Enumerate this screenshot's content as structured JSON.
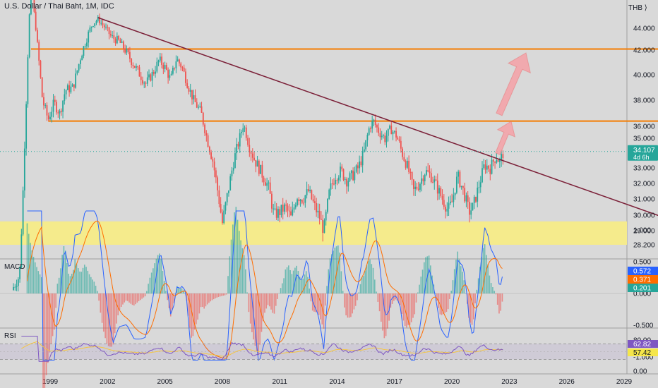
{
  "header": {
    "symbol": "U.S. Dollar / Thai Baht, 1M, IDC",
    "currency": "THB",
    "currency_suffix": "⟩"
  },
  "colors": {
    "background": "#d9d9d9",
    "up": "#26a69a",
    "down": "#ef5350",
    "trendline": "#7b2038",
    "hline": "#f57c00",
    "zone": "#f5eb8c",
    "macd": "#2962ff",
    "signal": "#ff6d00",
    "rsi": "#7e57c2",
    "arrow": "#f4a0a6"
  },
  "chart_data": [
    {
      "type": "candlestick",
      "title": "U.S. Dollar / Thai Baht, 1M, IDC",
      "y_axis": {
        "ticks": [
          "44.000",
          "42.000",
          "40.000",
          "38.000",
          "36.000",
          "35.000",
          "33.000",
          "32.000",
          "31.000",
          "30.000",
          "29.000",
          "28.200"
        ],
        "side": "right"
      },
      "x_axis": {
        "ticks": [
          "1999",
          "2002",
          "2005",
          "2008",
          "2011",
          "2014",
          "2017",
          "2020",
          "2023",
          "2026",
          "2029"
        ]
      },
      "last_price": "34.107",
      "countdown": "4d 6h",
      "levels": [
        42.1,
        36.4
      ],
      "support_zone": [
        28.2,
        29.6
      ],
      "trendline": {
        "from": [
          2001.5,
          45.5
        ],
        "to": [
          2031.2,
          29.8
        ]
      },
      "series_path": [
        [
          1997.0,
          25.0
        ],
        [
          1997.4,
          26.0
        ],
        [
          1997.6,
          32.0
        ],
        [
          1997.8,
          40.0
        ],
        [
          1998.0,
          50.0
        ],
        [
          1998.3,
          43.0
        ],
        [
          1998.6,
          38.0
        ],
        [
          1998.9,
          36.5
        ],
        [
          1999.2,
          37.8
        ],
        [
          1999.5,
          37.0
        ],
        [
          1999.8,
          38.8
        ],
        [
          2000.2,
          39.0
        ],
        [
          2000.6,
          41.5
        ],
        [
          2000.9,
          43.0
        ],
        [
          2001.2,
          44.5
        ],
        [
          2001.5,
          45.3
        ],
        [
          2001.8,
          44.3
        ],
        [
          2002.2,
          43.2
        ],
        [
          2002.6,
          42.8
        ],
        [
          2003.0,
          41.8
        ],
        [
          2003.3,
          41.0
        ],
        [
          2003.7,
          40.0
        ],
        [
          2004.0,
          39.3
        ],
        [
          2004.4,
          40.2
        ],
        [
          2004.7,
          41.2
        ],
        [
          2005.0,
          40.6
        ],
        [
          2005.3,
          39.6
        ],
        [
          2005.6,
          41.3
        ],
        [
          2005.9,
          40.6
        ],
        [
          2006.2,
          39.2
        ],
        [
          2006.5,
          38.0
        ],
        [
          2006.9,
          37.0
        ],
        [
          2007.2,
          35.0
        ],
        [
          2007.5,
          33.5
        ],
        [
          2007.7,
          32.0
        ],
        [
          2008.0,
          29.5
        ],
        [
          2008.3,
          31.5
        ],
        [
          2008.6,
          33.5
        ],
        [
          2008.9,
          35.0
        ],
        [
          2009.1,
          36.2
        ],
        [
          2009.4,
          34.5
        ],
        [
          2009.7,
          33.5
        ],
        [
          2010.0,
          32.8
        ],
        [
          2010.4,
          31.8
        ],
        [
          2010.7,
          30.0
        ],
        [
          2011.0,
          30.2
        ],
        [
          2011.3,
          30.5
        ],
        [
          2011.6,
          29.8
        ],
        [
          2011.9,
          31.2
        ],
        [
          2012.2,
          31.0
        ],
        [
          2012.5,
          31.5
        ],
        [
          2012.8,
          30.6
        ],
        [
          2013.1,
          29.8
        ],
        [
          2013.3,
          29.0
        ],
        [
          2013.6,
          31.5
        ],
        [
          2013.9,
          32.5
        ],
        [
          2014.2,
          32.8
        ],
        [
          2014.5,
          32.2
        ],
        [
          2014.8,
          32.5
        ],
        [
          2015.1,
          33.0
        ],
        [
          2015.4,
          34.0
        ],
        [
          2015.7,
          36.0
        ],
        [
          2015.9,
          36.4
        ],
        [
          2016.2,
          35.5
        ],
        [
          2016.5,
          35.0
        ],
        [
          2016.8,
          35.8
        ],
        [
          2017.1,
          35.2
        ],
        [
          2017.4,
          34.0
        ],
        [
          2017.7,
          33.0
        ],
        [
          2018.0,
          31.5
        ],
        [
          2018.3,
          32.0
        ],
        [
          2018.6,
          32.8
        ],
        [
          2018.9,
          32.5
        ],
        [
          2019.2,
          31.8
        ],
        [
          2019.5,
          31.0
        ],
        [
          2019.8,
          30.3
        ],
        [
          2020.0,
          30.8
        ],
        [
          2020.3,
          32.5
        ],
        [
          2020.6,
          31.5
        ],
        [
          2020.9,
          30.2
        ],
        [
          2021.1,
          30.5
        ],
        [
          2021.4,
          31.8
        ],
        [
          2021.7,
          33.2
        ],
        [
          2022.0,
          33.0
        ],
        [
          2022.3,
          33.8
        ],
        [
          2022.5,
          33.4
        ],
        [
          2022.7,
          34.1
        ]
      ]
    },
    {
      "type": "line",
      "title": "MACD",
      "y_axis": {
        "ticks": [
          "1.000",
          "0.500",
          "0.000",
          "-0.500",
          "-1.000"
        ]
      },
      "values": {
        "macd": "0.572",
        "signal": "0.371",
        "histogram": "0.201"
      }
    },
    {
      "type": "line",
      "title": "RSI",
      "y_axis": {
        "ticks": [
          "80.00",
          "0.00"
        ]
      },
      "values": {
        "rsi": "62.82",
        "rsi_ma": "57.42"
      }
    }
  ]
}
